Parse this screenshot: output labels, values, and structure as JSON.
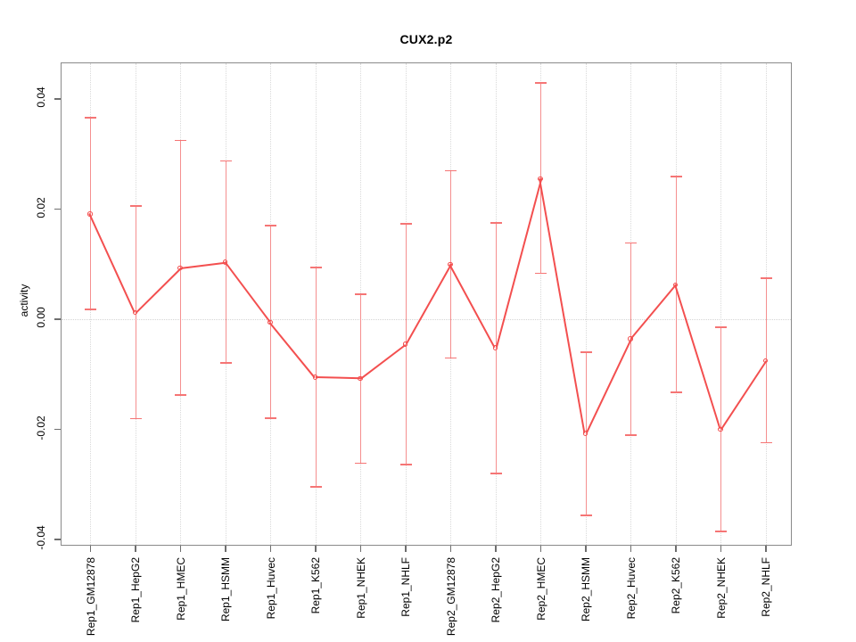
{
  "title": "CUX2.p2",
  "chart_data": {
    "type": "line",
    "title": "CUX2.p2",
    "xlabel": "",
    "ylabel": "activity",
    "ylim": [
      -0.045,
      0.046
    ],
    "yticks": [
      {
        "value": 0.04,
        "label": "0.04"
      },
      {
        "value": 0.02,
        "label": "0.02"
      },
      {
        "value": 0.0,
        "label": "0.00"
      },
      {
        "value": -0.02,
        "label": "-0.02"
      },
      {
        "value": -0.04,
        "label": "-0.04"
      }
    ],
    "grid": {
      "vertical_dotted_per_category": true,
      "horizontal_zero_line_dotted": true
    },
    "legend_position": "none",
    "point_style": "open-circle",
    "error_bars": true,
    "categories": [
      "Rep1_GM12878",
      "Rep1_HepG2",
      "Rep1_HMEC",
      "Rep1_HSMM",
      "Rep1_Huvec",
      "Rep1_K562",
      "Rep1_NHEK",
      "Rep1_NHLF",
      "Rep2_GM12878",
      "Rep2_HepG2",
      "Rep2_HMEC",
      "Rep2_HSMM",
      "Rep2_Huvec",
      "Rep2_K562",
      "Rep2_NHEK",
      "Rep2_NHLF"
    ],
    "series": [
      {
        "name": "activity",
        "values": [
          0.0193,
          0.0014,
          0.0095,
          0.0105,
          -0.0004,
          -0.0104,
          -0.0106,
          -0.0044,
          0.0101,
          -0.005,
          0.0257,
          -0.0206,
          -0.0034,
          0.0064,
          -0.0198,
          -0.0074
        ],
        "err_hi": [
          0.0368,
          0.0207,
          0.0326,
          0.0289,
          0.0171,
          0.0095,
          0.0047,
          0.0175,
          0.0271,
          0.0176,
          0.043,
          -0.0058,
          0.014,
          0.026,
          -0.0013,
          0.0076
        ],
        "err_lo": [
          0.0019,
          -0.0179,
          -0.0136,
          -0.0078,
          -0.0178,
          -0.0303,
          -0.026,
          -0.0263,
          -0.0069,
          -0.0279,
          0.0085,
          -0.0355,
          -0.0209,
          -0.0131,
          -0.0384,
          -0.0223
        ]
      }
    ],
    "colors": {
      "line": "#f34f4f",
      "point": "#f34f4f",
      "error_bar": "#f58f8f",
      "error_cap": "#f57575",
      "gridline": "#d9d9d9",
      "box_border": "#8a8a8a",
      "tick_mark": "#6e6e6e",
      "text": "#000000"
    }
  }
}
